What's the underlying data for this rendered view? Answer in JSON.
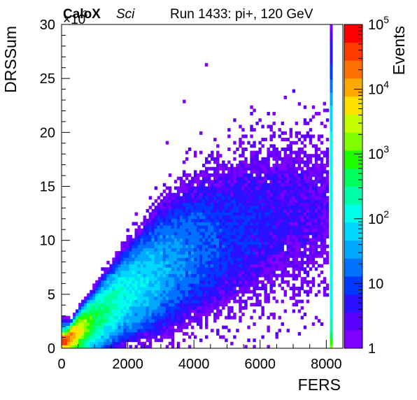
{
  "chart_data": {
    "type": "heatmap",
    "header": {
      "experiment": "CaloX",
      "tag": "Sci",
      "run": "Run 1433: pi+, 120 GeV"
    },
    "xlabel": "FERS",
    "ylabel": "DRSSum",
    "zlabel": "Events",
    "xlim": [
      0,
      8500
    ],
    "ylim": [
      0,
      30000
    ],
    "x_ticks": [
      0,
      2000,
      4000,
      6000,
      8000
    ],
    "x_tick_labels": [
      "0",
      "2000",
      "4000",
      "6000",
      "8000"
    ],
    "y_ticks": [
      0,
      5000,
      10000,
      15000,
      20000,
      25000,
      30000
    ],
    "y_tick_labels": [
      "0",
      "5",
      "10",
      "15",
      "20",
      "25",
      "30"
    ],
    "y_multiplier": {
      "base": "×10",
      "exponent": "3"
    },
    "z_scale": "log",
    "zlim": [
      1,
      100000
    ],
    "z_ticks": [
      {
        "value": 1,
        "base": "1",
        "exp": ""
      },
      {
        "value": 10,
        "base": "10",
        "exp": ""
      },
      {
        "value": 100,
        "base": "10",
        "exp": "2"
      },
      {
        "value": 1000,
        "base": "10",
        "exp": "3"
      },
      {
        "value": 10000,
        "base": "10",
        "exp": "4"
      },
      {
        "value": 100000,
        "base": "10",
        "exp": "5"
      }
    ],
    "palette": [
      "#7f00ff",
      "#5a00ff",
      "#2a10ff",
      "#0038ff",
      "#0070ff",
      "#00a8ff",
      "#00d8ff",
      "#00ffe8",
      "#00ffa8",
      "#00ff60",
      "#20ff00",
      "#80ff00",
      "#c8ff00",
      "#ffe000",
      "#ffa800",
      "#ff7000",
      "#ff3c00",
      "#ff0000"
    ],
    "bin_width_x": 85,
    "bin_width_y": 300,
    "band": {
      "description_key": "main diagonal pi+ shower band",
      "points": [
        [
          150,
          700
        ],
        [
          1000,
          2800
        ],
        [
          2000,
          5200
        ],
        [
          3000,
          7200
        ],
        [
          4000,
          9000
        ],
        [
          5000,
          10500
        ],
        [
          6000,
          11700
        ],
        [
          7000,
          12600
        ],
        [
          8000,
          13000
        ]
      ],
      "width_sigma": [
        300,
        900,
        1700,
        2600,
        3200,
        3700,
        4000,
        4200,
        4300
      ],
      "peak_counts": [
        30000,
        600,
        120,
        45,
        18,
        9,
        6,
        4,
        3
      ]
    },
    "lower_branch": {
      "points": [
        [
          300,
          100
        ],
        [
          1000,
          800
        ],
        [
          1600,
          1500
        ],
        [
          2200,
          2400
        ]
      ],
      "peak_counts": [
        2000,
        60,
        12,
        4
      ]
    },
    "saturation_column": {
      "x": 8130,
      "y_range": [
        0,
        30000
      ],
      "counts_at": [
        [
          0,
          1500
        ],
        [
          1500,
          300
        ],
        [
          3000,
          150
        ],
        [
          6000,
          120
        ],
        [
          10000,
          100
        ],
        [
          14000,
          120
        ],
        [
          18000,
          140
        ],
        [
          22000,
          60
        ],
        [
          26000,
          8
        ],
        [
          29000,
          3
        ],
        [
          30000,
          1
        ]
      ]
    },
    "outliers": [
      [
        4330,
        26100
      ],
      [
        7900,
        22500
      ],
      [
        7920,
        20400
      ],
      [
        3660,
        22700
      ]
    ]
  }
}
